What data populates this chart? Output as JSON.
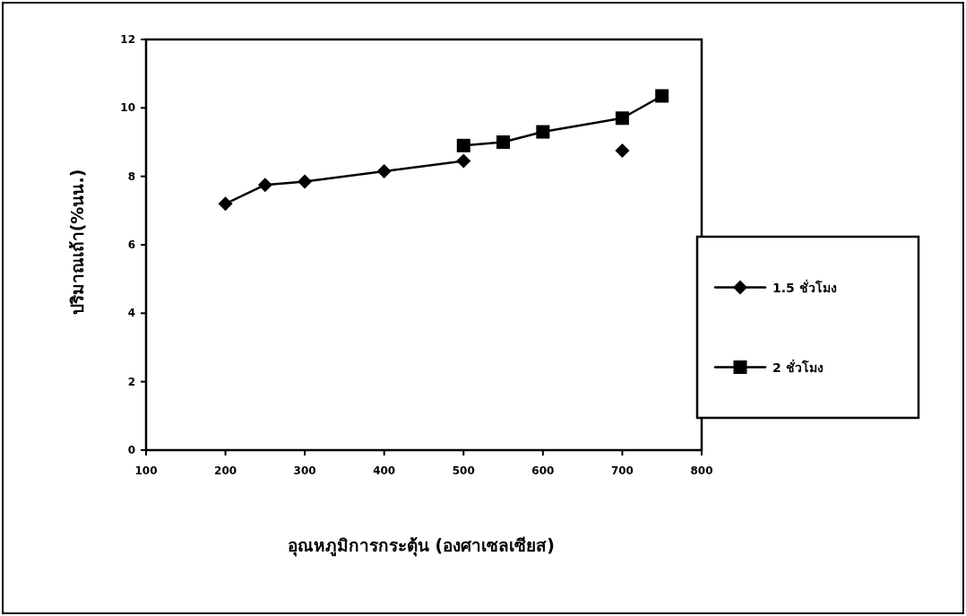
{
  "chart_data": {
    "type": "line",
    "xlabel": "อุณหภูมิการกระตุ้น (องศาเซลเซียส)",
    "ylabel": "ปริมาณเถ้า(%นน.)",
    "xlim": [
      100,
      800
    ],
    "xticks": [
      100,
      200,
      300,
      400,
      500,
      600,
      700,
      800
    ],
    "ylim": [
      0,
      12
    ],
    "yticks": [
      0,
      2,
      4,
      6,
      8,
      10,
      12
    ],
    "grid": false,
    "legend": "right",
    "line_style": "solid",
    "series": [
      {
        "name": "1.5 ชั่วโมง",
        "color": "#000000",
        "marker": "diamond",
        "x": [
          200,
          250,
          300,
          400,
          500,
          550,
          600,
          700
        ],
        "values": [
          7.2,
          7.75,
          7.85,
          8.15,
          8.45,
          null,
          null,
          8.75
        ]
      },
      {
        "name": "2 ชั่วโมง",
        "color": "#000000",
        "marker": "square",
        "x": [
          500,
          550,
          600,
          700,
          750
        ],
        "values": [
          8.9,
          9.0,
          9.3,
          9.7,
          10.35
        ]
      }
    ]
  }
}
